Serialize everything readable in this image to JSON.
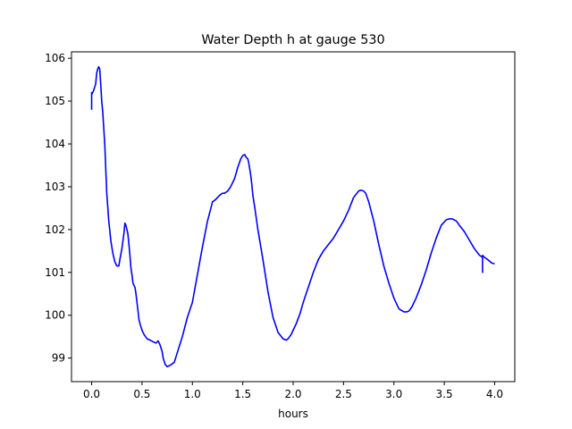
{
  "chart_data": {
    "type": "line",
    "title": "Water Depth h at gauge 530",
    "xlabel": "hours",
    "ylabel": "",
    "xlim": [
      -0.2,
      4.2
    ],
    "ylim": [
      98.45,
      106.15
    ],
    "xticks": [
      0.0,
      0.5,
      1.0,
      1.5,
      2.0,
      2.5,
      3.0,
      3.5,
      4.0
    ],
    "xtick_labels": [
      "0.0",
      "0.5",
      "1.0",
      "1.5",
      "2.0",
      "2.5",
      "3.0",
      "3.5",
      "4.0"
    ],
    "yticks": [
      99,
      100,
      101,
      102,
      103,
      104,
      105,
      106
    ],
    "ytick_labels": [
      "99",
      "100",
      "101",
      "102",
      "103",
      "104",
      "105",
      "106"
    ],
    "grid": false,
    "series": [
      {
        "color": "#0000ff",
        "x": [
          0.0,
          0.0,
          0.0,
          0.02,
          0.04,
          0.05,
          0.06,
          0.07,
          0.08,
          0.09,
          0.1,
          0.11,
          0.13,
          0.15,
          0.17,
          0.19,
          0.21,
          0.23,
          0.25,
          0.27,
          0.28,
          0.3,
          0.32,
          0.33,
          0.34,
          0.36,
          0.38,
          0.39,
          0.4,
          0.41,
          0.42,
          0.43,
          0.44,
          0.45,
          0.46,
          0.47,
          0.48,
          0.5,
          0.52,
          0.55,
          0.58,
          0.61,
          0.64,
          0.66,
          0.68,
          0.7,
          0.71,
          0.73,
          0.75,
          0.77,
          0.79,
          0.82,
          0.86,
          0.9,
          0.95,
          1.0,
          1.05,
          1.1,
          1.15,
          1.2,
          1.23,
          1.27,
          1.3,
          1.32,
          1.35,
          1.38,
          1.42,
          1.45,
          1.48,
          1.5,
          1.52,
          1.53,
          1.55,
          1.56,
          1.57,
          1.58,
          1.59,
          1.6,
          1.62,
          1.65,
          1.7,
          1.75,
          1.8,
          1.85,
          1.9,
          1.93,
          1.95,
          1.98,
          2.0,
          2.03,
          2.07,
          2.1,
          2.15,
          2.2,
          2.25,
          2.3,
          2.35,
          2.4,
          2.45,
          2.5,
          2.55,
          2.6,
          2.65,
          2.67,
          2.7,
          2.72,
          2.75,
          2.8,
          2.85,
          2.9,
          2.95,
          3.0,
          3.05,
          3.1,
          3.13,
          3.15,
          3.18,
          3.22,
          3.27,
          3.32,
          3.37,
          3.42,
          3.47,
          3.52,
          3.55,
          3.58,
          3.62,
          3.65,
          3.7,
          3.75,
          3.8,
          3.85,
          3.88,
          3.88,
          3.88,
          3.88,
          3.9,
          3.93,
          3.97,
          4.0
        ],
        "y": [
          104.8,
          105.2,
          105.15,
          105.25,
          105.4,
          105.65,
          105.75,
          105.8,
          105.75,
          105.4,
          105.0,
          104.75,
          104.0,
          102.85,
          102.2,
          101.75,
          101.45,
          101.25,
          101.15,
          101.15,
          101.3,
          101.55,
          101.9,
          102.15,
          102.1,
          101.9,
          101.4,
          101.1,
          100.95,
          100.75,
          100.7,
          100.65,
          100.5,
          100.3,
          100.1,
          99.9,
          99.8,
          99.65,
          99.55,
          99.45,
          99.42,
          99.38,
          99.35,
          99.4,
          99.3,
          99.15,
          99.0,
          98.85,
          98.8,
          98.82,
          98.85,
          98.9,
          99.2,
          99.5,
          99.95,
          100.3,
          100.95,
          101.6,
          102.2,
          102.65,
          102.7,
          102.8,
          102.85,
          102.85,
          102.9,
          103.0,
          103.2,
          103.45,
          103.65,
          103.73,
          103.75,
          103.7,
          103.65,
          103.55,
          103.4,
          103.25,
          103.05,
          102.8,
          102.5,
          102.0,
          101.3,
          100.55,
          99.95,
          99.6,
          99.45,
          99.42,
          99.45,
          99.55,
          99.65,
          99.8,
          100.05,
          100.3,
          100.65,
          101.0,
          101.3,
          101.5,
          101.65,
          101.8,
          102.0,
          102.2,
          102.45,
          102.75,
          102.9,
          102.92,
          102.9,
          102.85,
          102.65,
          102.2,
          101.65,
          101.15,
          100.75,
          100.4,
          100.15,
          100.08,
          100.08,
          100.1,
          100.2,
          100.4,
          100.7,
          101.05,
          101.45,
          101.8,
          102.1,
          102.23,
          102.25,
          102.25,
          102.2,
          102.1,
          101.95,
          101.75,
          101.55,
          101.4,
          101.35,
          101.0,
          101.3,
          101.4,
          101.35,
          101.3,
          101.22,
          101.2
        ]
      }
    ]
  }
}
